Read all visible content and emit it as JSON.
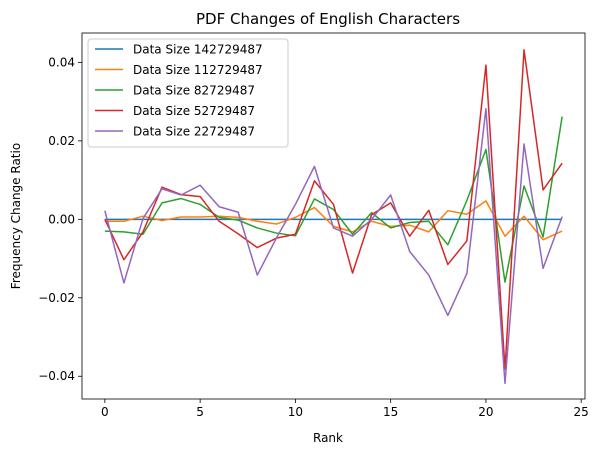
{
  "chart_data": {
    "type": "line",
    "title": "PDF Changes of English Characters",
    "xlabel": "Rank",
    "ylabel": "Frequency Change Ratio",
    "xlim": [
      -1.2,
      25.2
    ],
    "ylim": [
      -0.0458,
      0.0475
    ],
    "xticks": [
      0,
      5,
      10,
      15,
      20,
      25
    ],
    "yticks": [
      -0.04,
      -0.02,
      0.0,
      0.02,
      0.04
    ],
    "ytick_labels": [
      "−0.04",
      "−0.02",
      "0.00",
      "0.02",
      "0.04"
    ],
    "grid": false,
    "legend_position": "top-left",
    "x": [
      0,
      1,
      2,
      3,
      4,
      5,
      6,
      7,
      8,
      9,
      10,
      11,
      12,
      13,
      14,
      15,
      16,
      17,
      18,
      19,
      20,
      21,
      22,
      23,
      24
    ],
    "series": [
      {
        "name": "Data Size 142729487",
        "color": "#1f77b4",
        "values": [
          0,
          0,
          0,
          0,
          0,
          0,
          0,
          0,
          0,
          0,
          0,
          0,
          0,
          0,
          0,
          0,
          0,
          0,
          0,
          0,
          0,
          0,
          0,
          0,
          0
        ]
      },
      {
        "name": "Data Size 112729487",
        "color": "#ff7f0e",
        "values": [
          -0.0005,
          -0.0005,
          0.0008,
          -0.0003,
          0.0006,
          0.0006,
          0.0008,
          0.0005,
          -0.0005,
          -0.0012,
          0.0005,
          0.003,
          -0.0018,
          -0.0032,
          -0.0005,
          -0.0018,
          -0.0015,
          -0.0032,
          0.0022,
          0.0013,
          0.0047,
          -0.0043,
          0.0008,
          -0.0052,
          -0.003
        ]
      },
      {
        "name": "Data Size 82729487",
        "color": "#2ca02c",
        "values": [
          -0.003,
          -0.0032,
          -0.0038,
          0.0042,
          0.0053,
          0.0038,
          0.0005,
          -0.0002,
          -0.0022,
          -0.0035,
          -0.0042,
          0.0052,
          0.0025,
          -0.0038,
          0.0017,
          -0.0022,
          -0.0008,
          -0.0005,
          -0.0065,
          0.0048,
          0.0178,
          -0.016,
          0.0085,
          -0.0045,
          0.0262
        ]
      },
      {
        "name": "Data Size 52729487",
        "color": "#d62728",
        "values": [
          0,
          -0.0103,
          -0.0032,
          0.0082,
          0.0063,
          0.0058,
          -0.0005,
          -0.0037,
          -0.0072,
          -0.0048,
          -0.0038,
          0.0098,
          0.0038,
          -0.0137,
          0.0012,
          0.0042,
          -0.0043,
          0.0023,
          -0.0115,
          -0.0055,
          0.0393,
          -0.0382,
          0.0432,
          0.0075,
          0.0143
        ]
      },
      {
        "name": "Data Size 22729487",
        "color": "#9467bd",
        "values": [
          0.0022,
          -0.0162,
          0.0002,
          0.0078,
          0.0062,
          0.0087,
          0.0032,
          0.0018,
          -0.0142,
          -0.0048,
          0.0038,
          0.0135,
          -0.0022,
          -0.0043,
          0.0,
          0.0062,
          -0.0082,
          -0.0142,
          -0.0245,
          -0.0138,
          0.0282,
          -0.0418,
          0.0192,
          -0.0125,
          0.0007
        ]
      }
    ]
  }
}
